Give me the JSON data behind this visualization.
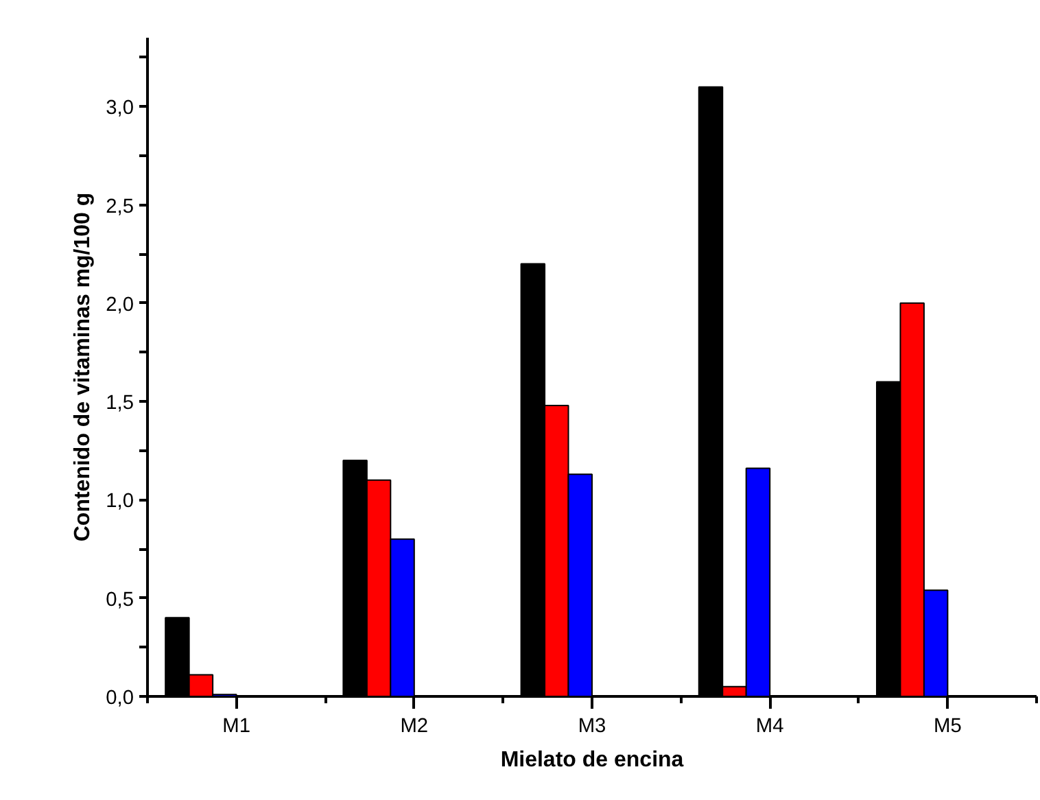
{
  "chart_data": {
    "type": "bar",
    "xlabel": "Mielato de encina",
    "ylabel": "Contenido de vitaminas mg/100 g",
    "categories": [
      "M1",
      "M2",
      "M3",
      "M4",
      "M5"
    ],
    "series": [
      {
        "color": "#000000",
        "values": [
          0.4,
          1.2,
          2.2,
          3.1,
          1.6
        ]
      },
      {
        "color": "#ff0000",
        "values": [
          0.11,
          1.1,
          1.48,
          0.05,
          2.0
        ]
      },
      {
        "color": "#0000ff",
        "values": [
          0.01,
          0.8,
          1.13,
          1.16,
          0.54
        ]
      }
    ],
    "ylim": [
      0,
      3.35
    ],
    "yticks": [
      {
        "value": 0,
        "label": "0,0"
      },
      {
        "value": 0.25,
        "label": null
      },
      {
        "value": 0.5,
        "label": "0,5"
      },
      {
        "value": 0.75,
        "label": null
      },
      {
        "value": 1.0,
        "label": "1,0"
      },
      {
        "value": 1.25,
        "label": null
      },
      {
        "value": 1.5,
        "label": "1,5"
      },
      {
        "value": 1.75,
        "label": null
      },
      {
        "value": 2.0,
        "label": "2,0"
      },
      {
        "value": 2.25,
        "label": null
      },
      {
        "value": 2.5,
        "label": "2,5"
      },
      {
        "value": 2.75,
        "label": null
      },
      {
        "value": 3.0,
        "label": "3,0"
      },
      {
        "value": 3.25,
        "label": null
      }
    ],
    "grid": false
  }
}
